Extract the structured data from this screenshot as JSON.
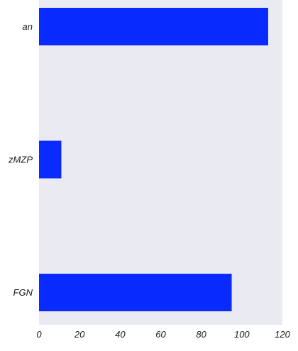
{
  "chart_data": {
    "type": "bar",
    "orientation": "horizontal",
    "categories": [
      "an",
      "zMZP",
      "FGN"
    ],
    "values": [
      113,
      11,
      95
    ],
    "xlim": [
      0,
      120
    ],
    "xticks": [
      "0",
      "20",
      "40",
      "60",
      "80",
      "100",
      "120"
    ],
    "grid": false,
    "title": "",
    "xlabel": "",
    "ylabel": "",
    "colors": {
      "bar": "#0a2bff",
      "plot_background": "#eaeaf2"
    }
  }
}
